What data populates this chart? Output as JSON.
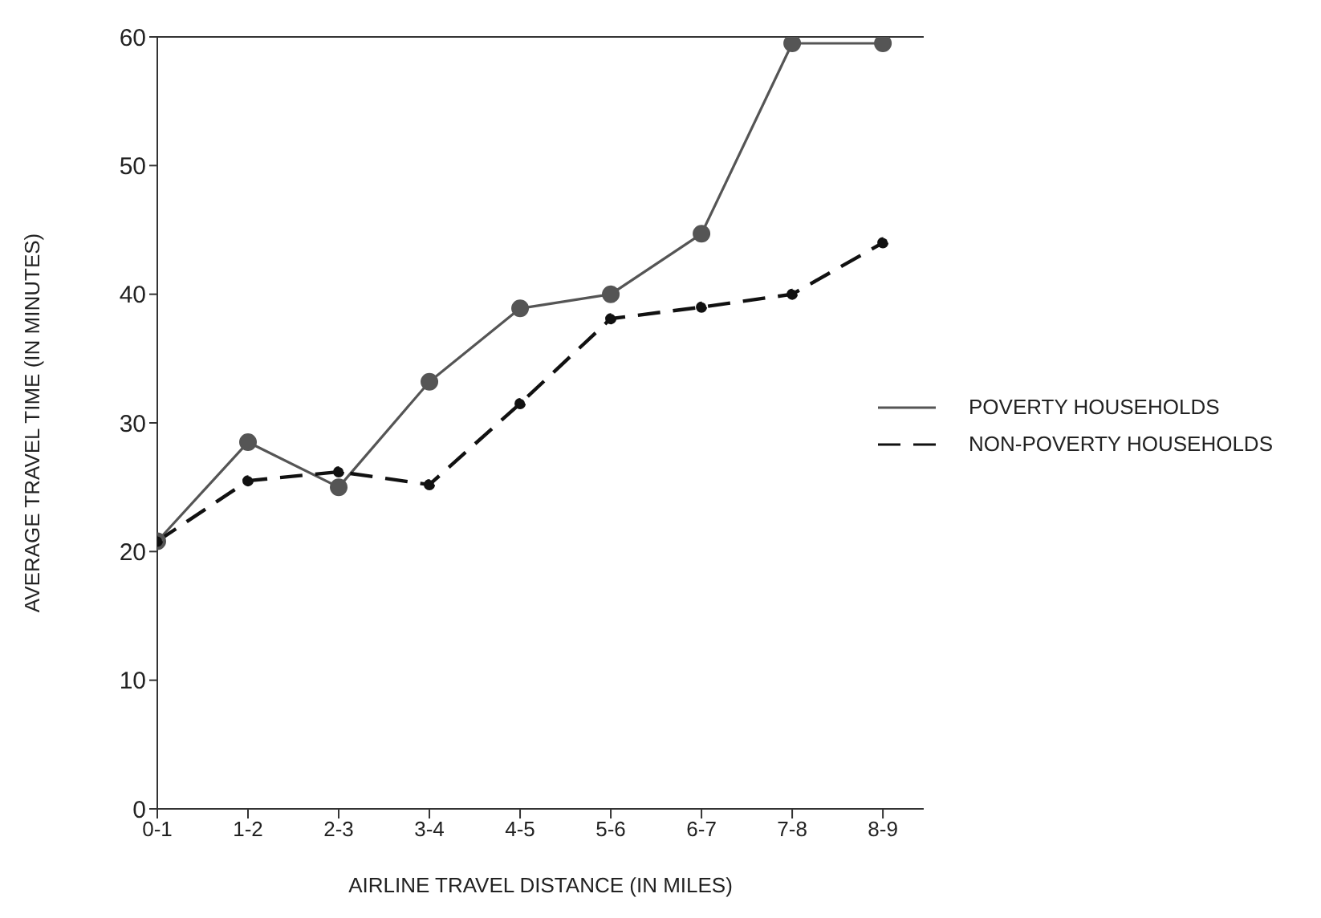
{
  "chart_data": {
    "type": "line",
    "xlabel": "AIRLINE TRAVEL DISTANCE (IN MILES)",
    "ylabel": "AVERAGE TRAVEL TIME (IN MINUTES)",
    "categories": [
      "0-1",
      "1-2",
      "2-3",
      "3-4",
      "4-5",
      "5-6",
      "6-7",
      "7-8",
      "8-9"
    ],
    "series": [
      {
        "name": "POVERTY HOUSEHOLDS",
        "color": "#555555",
        "line_style": "solid",
        "values": [
          20.8,
          28.5,
          25,
          33.2,
          38.9,
          40,
          44.7,
          59.5,
          59.5
        ]
      },
      {
        "name": "NON-POVERTY HOUSEHOLDS",
        "color": "#111111",
        "line_style": "dashed",
        "values": [
          20.8,
          25.5,
          26.2,
          25.2,
          31.5,
          38.1,
          39,
          40,
          44
        ]
      }
    ],
    "ylim": [
      0,
      60
    ],
    "yticks": [
      0,
      10,
      20,
      30,
      40,
      50,
      60
    ],
    "grid": false,
    "legend": "right",
    "marker": "circle"
  }
}
